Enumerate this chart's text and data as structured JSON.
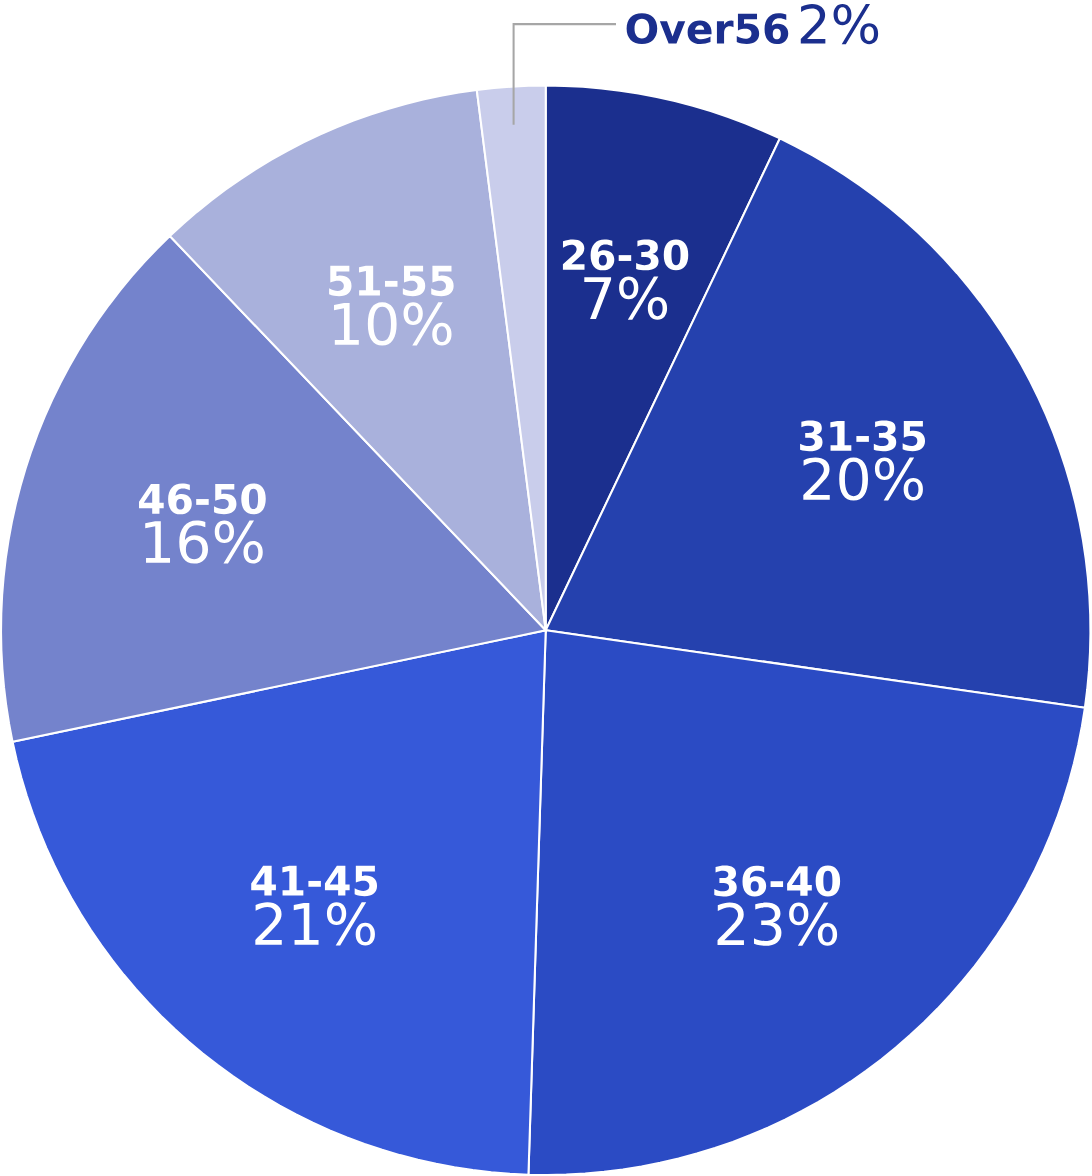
{
  "chart_data": {
    "type": "pie",
    "categories": [
      "26-30",
      "31-35",
      "36-40",
      "41-45",
      "46-50",
      "51-55",
      "Over56"
    ],
    "values": [
      7,
      20,
      23,
      21,
      16,
      10,
      2
    ],
    "value_labels": [
      "7%",
      "20%",
      "23%",
      "21%",
      "16%",
      "10%",
      "2%"
    ],
    "colors": [
      "#1b2f8e",
      "#2541ae",
      "#2b4bc4",
      "#3659d9",
      "#7483cc",
      "#a9b1dc",
      "#c9cdeb"
    ]
  }
}
